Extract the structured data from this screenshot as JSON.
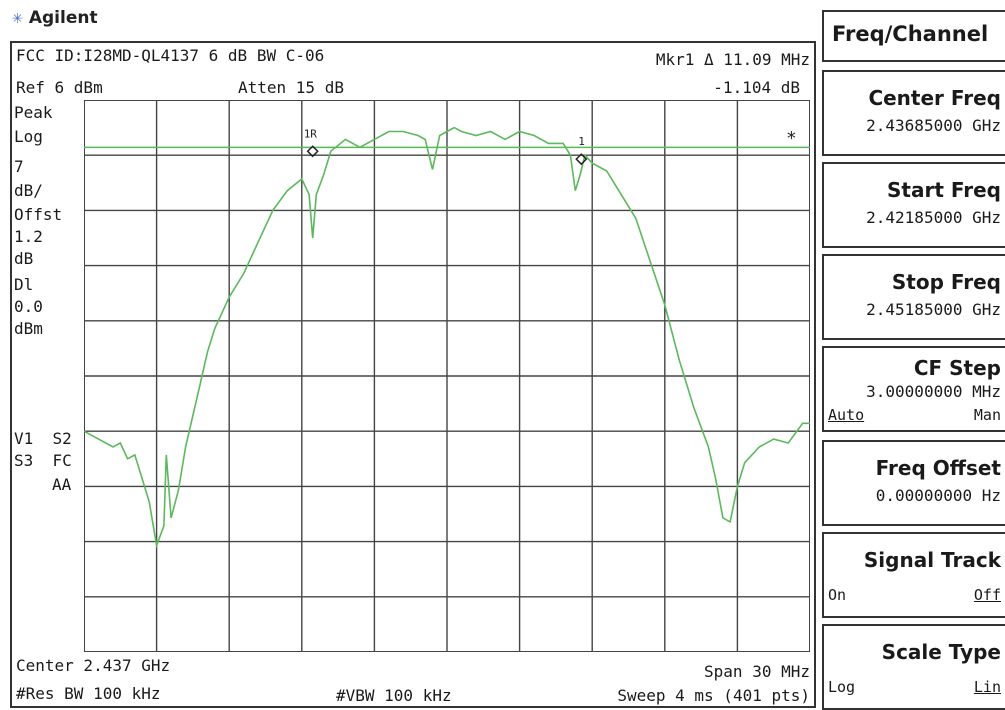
{
  "brand": {
    "logo_text": "Agilent",
    "logo_icon": "agilent-spark-icon",
    "logo_color": "#4a6fc7"
  },
  "header": {
    "title": "FCC ID:I28MD-QL4137 6 dB BW C-06",
    "marker_label": "Mkr1 Δ  11.09 MHz",
    "ref_level": "Ref 6 dBm",
    "atten": "Atten 15 dB",
    "marker_delta_amp": "-1.104 dB"
  },
  "left_labels": {
    "peak": "Peak",
    "log": "Log",
    "scale_value": "7",
    "scale_unit": "dB/",
    "offset_label": "Offst",
    "offset_value": "1.2",
    "offset_unit": "dB",
    "dl_label": "Dl",
    "dl_value": "0.0",
    "dl_unit": "dBm",
    "v1s2": "V1  S2",
    "s3fc": "S3  FC",
    "aa": "AA"
  },
  "footer": {
    "center": "Center 2.437 GHz",
    "span": "Span 30 MHz",
    "res_bw": "#Res BW 100 kHz",
    "vbw": "#VBW 100 kHz",
    "sweep": "Sweep 4 ms (401 pts)"
  },
  "markers": {
    "ref_marker": "1R",
    "delta_marker": "1",
    "star": "*"
  },
  "softkeys": {
    "menu_title": "Freq/Channel",
    "center_freq": {
      "label": "Center Freq",
      "value": "2.43685000 GHz"
    },
    "start_freq": {
      "label": "Start Freq",
      "value": "2.42185000 GHz"
    },
    "stop_freq": {
      "label": "Stop Freq",
      "value": "2.45185000 GHz"
    },
    "cf_step": {
      "label": "CF Step",
      "value": "3.00000000 MHz",
      "opt_left": "Auto",
      "opt_right": "Man"
    },
    "freq_offset": {
      "label": "Freq Offset",
      "value": "0.00000000  Hz"
    },
    "signal_track": {
      "label": "Signal Track",
      "opt_left": "On",
      "opt_right": "Off"
    },
    "scale_type": {
      "label": "Scale Type",
      "opt_left": "Log",
      "opt_right": "Lin"
    }
  },
  "chart_data": {
    "type": "line",
    "x_center_ghz": 2.437,
    "span_mhz": 30,
    "ref_level_dbm": 6,
    "scale_db_per_div": 7,
    "display_line_dbm": 0.0,
    "trace_color": "#5cb85c",
    "display_line_color": "#5cb85c",
    "series": [
      {
        "x": [
          -15,
          -14.4,
          -13.8,
          -13.5,
          -13.2,
          -12.9,
          -12.6,
          -12.3,
          -12.0,
          -11.7,
          -11.6,
          -11.4,
          -11.1,
          -10.8,
          -10.5,
          -10.2,
          -9.9,
          -9.6,
          -9.0,
          -8.4,
          -7.8,
          -7.2,
          -6.6,
          -6.0,
          -5.7,
          -5.55,
          -5.4,
          -5.1,
          -4.8,
          -4.2,
          -3.6,
          -3.0,
          -2.4,
          -1.8,
          -1.2,
          -0.9,
          -0.6,
          -0.3,
          0.0,
          0.3,
          0.6,
          1.2,
          1.8,
          2.4,
          3.0,
          3.6,
          4.2,
          4.8,
          5.1,
          5.3,
          5.5,
          5.7,
          6.0,
          6.6,
          7.2,
          7.8,
          8.4,
          9.0,
          9.6,
          10.2,
          10.8,
          11.1,
          11.4,
          11.7,
          12.0,
          12.3,
          12.6,
          12.9,
          13.5,
          14.1,
          14.7,
          15
        ],
        "y": [
          -36.0,
          -37.0,
          -38.0,
          -37.5,
          -39.5,
          -39.0,
          -42.0,
          -45.0,
          -50.5,
          -48.0,
          -39.0,
          -47.0,
          -43.5,
          -38.0,
          -34.0,
          -30.0,
          -26.0,
          -23.0,
          -19.0,
          -16.0,
          -12.0,
          -8.0,
          -5.5,
          -4.0,
          -6.0,
          -11.5,
          -6.0,
          -3.5,
          -0.5,
          1.0,
          0.0,
          1.0,
          2.0,
          2.0,
          1.5,
          1.0,
          -2.8,
          1.5,
          2.0,
          2.5,
          2.0,
          1.5,
          2.0,
          1.0,
          2.0,
          1.5,
          0.5,
          0.5,
          -1.0,
          -5.5,
          -3.5,
          -1.0,
          -2.0,
          -3.0,
          -6.0,
          -9.0,
          -14.5,
          -20.0,
          -27.0,
          -33.0,
          -38.0,
          -42.0,
          -47.0,
          -47.5,
          -43.0,
          -40.0,
          -39.0,
          -38.0,
          -37.0,
          -37.5,
          -35.0,
          -35.0
        ]
      }
    ],
    "xlim": [
      -15,
      15
    ],
    "ylim": [
      -64,
      6
    ]
  }
}
